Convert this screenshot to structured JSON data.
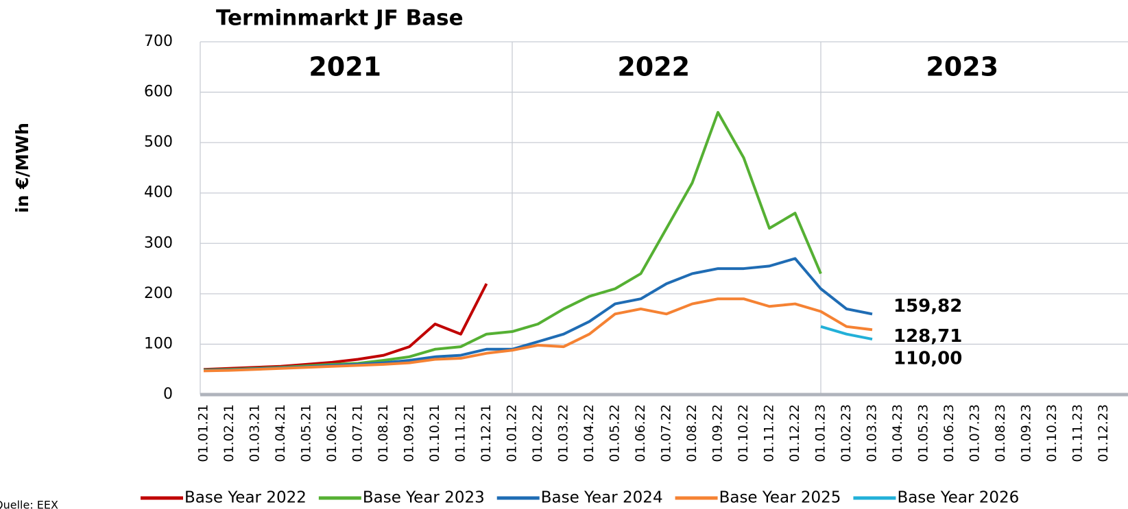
{
  "chart_data": {
    "type": "line",
    "title": "Terminmarkt JF Base",
    "y_label": "in €/MWh",
    "source": "Quelle: EEX",
    "annotations": [
      "2021",
      "2022",
      "2023"
    ],
    "categories": [
      "01.01.21",
      "01.02.21",
      "01.03.21",
      "01.04.21",
      "01.05.21",
      "01.06.21",
      "01.07.21",
      "01.08.21",
      "01.09.21",
      "01.10.21",
      "01.11.21",
      "01.12.21",
      "01.01.22",
      "01.02.22",
      "01.03.22",
      "01.04.22",
      "01.05.22",
      "01.06.22",
      "01.07.22",
      "01.08.22",
      "01.09.22",
      "01.10.22",
      "01.11.22",
      "01.12.22",
      "01.01.23",
      "01.02.23",
      "01.03.23",
      "01.04.23",
      "01.05.23",
      "01.06.23",
      "01.07.23",
      "01.08.23",
      "01.09.23",
      "01.10.23",
      "01.11.23",
      "01.12.23"
    ],
    "series": [
      {
        "name": "Base Year 2022",
        "color": "#c00000",
        "values": [
          50,
          52,
          54,
          56,
          60,
          64,
          70,
          78,
          95,
          140,
          120,
          220,
          null,
          null,
          null,
          null,
          null,
          null,
          null,
          null,
          null,
          null,
          null,
          null,
          null,
          null,
          null,
          null,
          null,
          null,
          null,
          null,
          null,
          null,
          null,
          null
        ]
      },
      {
        "name": "Base Year 2023",
        "color": "#55b033",
        "values": [
          49,
          50,
          52,
          54,
          57,
          60,
          62,
          68,
          75,
          90,
          95,
          120,
          125,
          140,
          170,
          195,
          210,
          240,
          330,
          420,
          560,
          470,
          330,
          360,
          240,
          null,
          null,
          null,
          null,
          null,
          null,
          null,
          null,
          null,
          null,
          null
        ]
      },
      {
        "name": "Base Year 2024",
        "color": "#1f6cb4",
        "values": [
          48,
          49,
          51,
          53,
          55,
          58,
          60,
          63,
          68,
          75,
          78,
          90,
          90,
          105,
          120,
          145,
          180,
          190,
          220,
          240,
          250,
          250,
          255,
          270,
          210,
          170,
          159.82,
          null,
          null,
          null,
          null,
          null,
          null,
          null,
          null,
          null
        ],
        "value_labels": [
          null,
          null,
          null,
          null,
          null,
          null,
          null,
          null,
          null,
          null,
          null,
          null,
          null,
          null,
          null,
          null,
          null,
          null,
          null,
          null,
          null,
          null,
          null,
          null,
          null,
          null,
          "159,82",
          null,
          null,
          null,
          null,
          null,
          null,
          null,
          null,
          null
        ]
      },
      {
        "name": "Base Year 2025",
        "color": "#f58233",
        "values": [
          47,
          48,
          50,
          52,
          54,
          56,
          58,
          60,
          63,
          70,
          72,
          82,
          88,
          98,
          95,
          120,
          160,
          170,
          160,
          180,
          190,
          190,
          175,
          180,
          165,
          135,
          128.71,
          null,
          null,
          null,
          null,
          null,
          null,
          null,
          null,
          null
        ],
        "value_labels": [
          null,
          null,
          null,
          null,
          null,
          null,
          null,
          null,
          null,
          null,
          null,
          null,
          null,
          null,
          null,
          null,
          null,
          null,
          null,
          null,
          null,
          null,
          null,
          null,
          null,
          null,
          "128,71",
          null,
          null,
          null,
          null,
          null,
          null,
          null,
          null,
          null
        ]
      },
      {
        "name": "Base Year 2026",
        "color": "#22b0d8",
        "values": [
          null,
          null,
          null,
          null,
          null,
          null,
          null,
          null,
          null,
          null,
          null,
          null,
          null,
          null,
          null,
          null,
          null,
          null,
          null,
          null,
          null,
          null,
          null,
          null,
          135,
          120,
          110.0,
          null,
          null,
          null,
          null,
          null,
          null,
          null,
          null,
          null
        ],
        "value_labels": [
          null,
          null,
          null,
          null,
          null,
          null,
          null,
          null,
          null,
          null,
          null,
          null,
          null,
          null,
          null,
          null,
          null,
          null,
          null,
          null,
          null,
          null,
          null,
          null,
          null,
          null,
          "110,00",
          null,
          null,
          null,
          null,
          null,
          null,
          null,
          null,
          null
        ]
      }
    ],
    "ylim": [
      0,
      700
    ],
    "yticks": [
      0,
      100,
      200,
      300,
      400,
      500,
      600,
      700
    ],
    "grid": true
  }
}
